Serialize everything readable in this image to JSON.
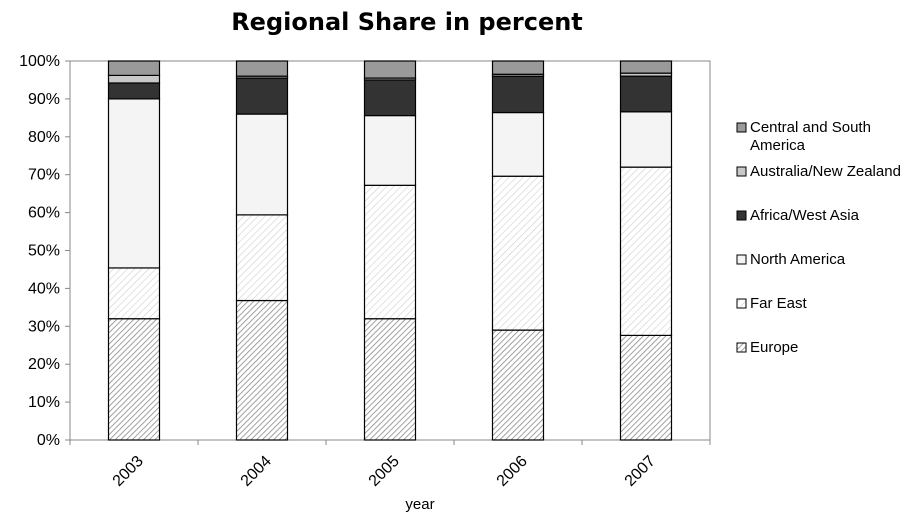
{
  "chart_data": {
    "type": "bar",
    "stacked": true,
    "title": "Regional Share in percent",
    "xlabel": "year",
    "ylabel": "",
    "ylim": [
      0,
      100
    ],
    "yticks": [
      "0%",
      "10%",
      "20%",
      "30%",
      "40%",
      "50%",
      "60%",
      "70%",
      "80%",
      "90%",
      "100%"
    ],
    "categories": [
      "2003",
      "2004",
      "2005",
      "2006",
      "2007"
    ],
    "grid": false,
    "legend_position": "right",
    "series": [
      {
        "name": "Europe",
        "values": [
          32.0,
          36.8,
          32.0,
          29.0,
          27.6
        ],
        "fill": "hatch-dense",
        "color": "#bdbdbd"
      },
      {
        "name": "Far East",
        "values": [
          13.4,
          22.6,
          35.2,
          40.6,
          44.4
        ],
        "fill": "hatch-light",
        "color": "#e6e6e6"
      },
      {
        "name": "North America",
        "values": [
          44.6,
          26.6,
          18.4,
          16.8,
          14.6
        ],
        "fill": "solid",
        "color": "#f4f4f4"
      },
      {
        "name": "Africa/West Asia",
        "values": [
          4.2,
          9.5,
          9.4,
          9.6,
          9.4
        ],
        "fill": "solid",
        "color": "#333333"
      },
      {
        "name": "Australia/New Zealand",
        "values": [
          2.0,
          0.5,
          0.5,
          0.5,
          0.8
        ],
        "fill": "solid",
        "color": "#c8c8c8"
      },
      {
        "name": "Central and South America",
        "values": [
          3.8,
          4.0,
          4.5,
          3.5,
          3.2
        ],
        "fill": "solid",
        "color": "#9a9a9a"
      }
    ]
  }
}
